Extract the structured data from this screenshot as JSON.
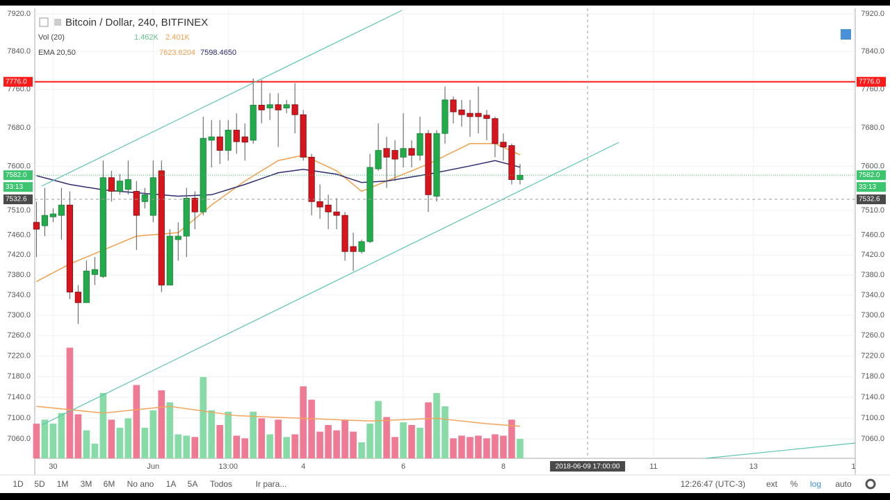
{
  "chart_data": {
    "type": "candlestick",
    "title": "Bitcoin / Dollar, 240, BITFINEX",
    "log": true,
    "grid": true,
    "ylim": [
      7023,
      7932
    ],
    "yticks": [
      {
        "value": 7920,
        "label": "7920.0"
      },
      {
        "value": 7840,
        "label": "7840.0"
      },
      {
        "value": 7760,
        "label": "7760.0"
      },
      {
        "value": 7680,
        "label": "7680.0"
      },
      {
        "value": 7600,
        "label": "7600.0"
      },
      {
        "value": 7510,
        "label": "7510.0"
      },
      {
        "value": 7460,
        "label": "7460.0"
      },
      {
        "value": 7420,
        "label": "7420.0"
      },
      {
        "value": 7380,
        "label": "7380.0"
      },
      {
        "value": 7340,
        "label": "7340.0"
      },
      {
        "value": 7300,
        "label": "7300.0"
      },
      {
        "value": 7260,
        "label": "7260.0"
      },
      {
        "value": 7220,
        "label": "7220.0"
      },
      {
        "value": 7180,
        "label": "7180.0"
      },
      {
        "value": 7140,
        "label": "7140.0"
      },
      {
        "value": 7100,
        "label": "7100.0"
      },
      {
        "value": 7060,
        "label": "7060.0"
      }
    ],
    "xlim": [
      -0.2,
      98.2
    ],
    "xticks": [
      {
        "value": 2,
        "label": "30"
      },
      {
        "value": 14,
        "label": "Jun"
      },
      {
        "value": 23,
        "label": "13:00"
      },
      {
        "value": 32,
        "label": "4"
      },
      {
        "value": 44,
        "label": "6"
      },
      {
        "value": 56,
        "label": "8"
      },
      {
        "value": 74,
        "label": "11"
      },
      {
        "value": 86,
        "label": "13"
      },
      {
        "value": 98,
        "label": "1"
      }
    ],
    "up_color": "#22ab4a",
    "down_color": "#d8141c",
    "x": [
      0,
      1,
      2,
      3,
      4,
      5,
      6,
      7,
      8,
      9,
      10,
      11,
      12,
      13,
      14,
      15,
      16,
      17,
      18,
      19,
      20,
      21,
      22,
      23,
      24,
      25,
      26,
      27,
      28,
      29,
      30,
      31,
      32,
      33,
      34,
      35,
      36,
      37,
      38,
      39,
      40,
      41,
      42,
      43,
      44,
      45,
      46,
      47,
      48,
      49,
      50,
      51,
      52,
      53,
      54,
      55,
      56,
      57,
      58
    ],
    "open": [
      7486,
      7479,
      7497,
      7500,
      7521,
      7346,
      7325,
      7381,
      7377,
      7577,
      7549,
      7553,
      7549,
      7528,
      7500,
      7591,
      7360,
      7451,
      7458,
      7535,
      7507,
      7654,
      7661,
      7633,
      7675,
      7661,
      7654,
      7727,
      7721,
      7728,
      7721,
      7728,
      7707,
      7619,
      7528,
      7521,
      7507,
      7500,
      7437,
      7427,
      7447,
      7595,
      7637,
      7633,
      7619,
      7637,
      7623,
      7668,
      7539,
      7668,
      7738,
      7717,
      7710,
      7710,
      7706,
      7699,
      7650,
      7643,
      7573
    ],
    "high": [
      7528,
      7556,
      7514,
      7556,
      7549,
      7360,
      7409,
      7416,
      7612,
      7591,
      7584,
      7612,
      7570,
      7556,
      7612,
      7612,
      7472,
      7486,
      7556,
      7549,
      7703,
      7696,
      7696,
      7696,
      7710,
      7689,
      7783,
      7780,
      7752,
      7752,
      7738,
      7773,
      7717,
      7626,
      7563,
      7542,
      7535,
      7507,
      7465,
      7451,
      7626,
      7689,
      7661,
      7654,
      7710,
      7654,
      7703,
      7675,
      7675,
      7766,
      7745,
      7738,
      7738,
      7766,
      7717,
      7703,
      7668,
      7647,
      7605
    ],
    "low": [
      7416,
      7458,
      7486,
      7451,
      7332,
      7283,
      7325,
      7360,
      7374,
      7528,
      7542,
      7542,
      7430,
      7514,
      7486,
      7346,
      7360,
      7409,
      7416,
      7472,
      7500,
      7598,
      7605,
      7612,
      7626,
      7612,
      7647,
      7689,
      7696,
      7640,
      7710,
      7668,
      7612,
      7500,
      7493,
      7472,
      7472,
      7409,
      7388,
      7423,
      7444,
      7591,
      7556,
      7570,
      7598,
      7598,
      7612,
      7507,
      7528,
      7647,
      7689,
      7682,
      7661,
      7668,
      7654,
      7619,
      7612,
      7563,
      7563
    ],
    "close": [
      7472,
      7500,
      7503,
      7521,
      7346,
      7325,
      7388,
      7391,
      7577,
      7549,
      7570,
      7573,
      7500,
      7542,
      7577,
      7360,
      7458,
      7458,
      7535,
      7507,
      7658,
      7661,
      7633,
      7675,
      7651,
      7650,
      7727,
      7717,
      7728,
      7717,
      7728,
      7707,
      7619,
      7528,
      7517,
      7507,
      7500,
      7427,
      7427,
      7447,
      7598,
      7633,
      7619,
      7615,
      7637,
      7623,
      7668,
      7542,
      7668,
      7738,
      7713,
      7707,
      7703,
      7703,
      7699,
      7647,
      7640,
      7573,
      7582
    ],
    "volume": {
      "name": "Vol (20)",
      "ylim": [
        0,
        33.75
      ],
      "up_color": "#86dba6",
      "down_color": "#f07a93",
      "values": [
        2.6,
        2.9,
        2.6,
        3.4,
        8.3,
        3.3,
        2.1,
        1.1,
        4.9,
        2.9,
        2.3,
        3.0,
        5.5,
        2.3,
        3.6,
        5.1,
        4.2,
        1.8,
        1.7,
        1.6,
        6.1,
        3.6,
        2.5,
        3.5,
        1.7,
        1.5,
        3.5,
        3.0,
        1.8,
        2.9,
        1.6,
        1.8,
        5.4,
        4.4,
        2.0,
        2.5,
        2.1,
        2.9,
        2.0,
        1.2,
        2.6,
        4.3,
        3.1,
        1.6,
        2.7,
        2.5,
        2.3,
        4.2,
        4.9,
        3.9,
        1.5,
        1.7,
        1.6,
        1.7,
        1.5,
        1.8,
        1.7,
        2.9,
        1.462
      ],
      "value_label": "1.462K",
      "ma": {
        "color": "#f2a45c",
        "x": [
          0,
          8,
          16,
          24,
          32,
          40,
          48,
          54,
          58
        ],
        "values": [
          3.9,
          3.4,
          3.9,
          3.2,
          3.0,
          2.8,
          3.0,
          2.6,
          2.401
        ],
        "value_label": "2.401K"
      }
    },
    "ema": {
      "name": "EMA 20,50",
      "series": [
        {
          "color": "#f0a04b",
          "x": [
            0,
            4,
            8,
            12,
            17,
            21,
            25,
            29,
            32,
            36,
            39,
            42,
            47,
            52,
            55,
            58
          ],
          "values": [
            7367,
            7402,
            7430,
            7458,
            7465,
            7521,
            7570,
            7612,
            7623,
            7591,
            7549,
            7570,
            7605,
            7647,
            7647,
            7623.6204
          ],
          "value_label": "7623.6204"
        },
        {
          "color": "#2c2a6e",
          "x": [
            0,
            4,
            8,
            12,
            17,
            21,
            25,
            29,
            32,
            36,
            39,
            42,
            47,
            52,
            55,
            58
          ],
          "values": [
            7581,
            7563,
            7552,
            7546,
            7539,
            7542,
            7563,
            7587,
            7594,
            7584,
            7567,
            7570,
            7584,
            7601,
            7612,
            7598.465
          ],
          "value_label": "7598.4650"
        }
      ]
    },
    "hline": {
      "value": 7776,
      "label": "7776.0",
      "color": "#ff1a1a"
    },
    "last_price": {
      "value": 7582,
      "label": "7582.0",
      "countdown": "33:13",
      "color": "#3cc46f"
    },
    "crosshair": {
      "value": 7532.6,
      "label": "7532.6",
      "x": 66.1,
      "x_label": "2018-06-09 17:00:00"
    }
  },
  "toolbar": {
    "ranges": [
      "1D",
      "5D",
      "1M",
      "3M",
      "6M",
      "No ano",
      "1A",
      "5A",
      "Todos"
    ],
    "goto": "Ir para...",
    "clock": "12:26:47 (UTC-3)",
    "toggles": [
      "ext",
      "%",
      "log",
      "auto"
    ]
  }
}
